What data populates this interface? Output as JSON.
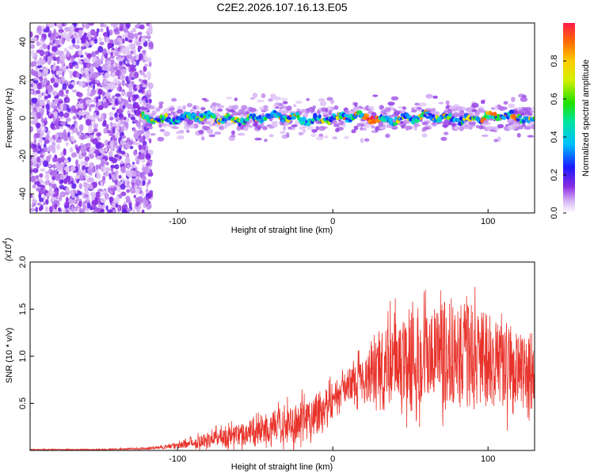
{
  "title": "C2E2.2026.107.16.13.E05",
  "chart_data": [
    {
      "type": "heatmap",
      "title": "C2E2.2026.107.16.13.E05",
      "xlabel": "Height of straight line (km)",
      "ylabel": "Frequency (Hz)",
      "xlim": [
        -195,
        130
      ],
      "ylim": [
        -50,
        50
      ],
      "x_ticks": [
        -100,
        0,
        100
      ],
      "y_ticks": [
        -40,
        -20,
        0,
        20,
        40
      ],
      "colorbar": {
        "label": "Normalized spectral amplitude",
        "range": [
          0.0,
          1.0
        ],
        "ticks": [
          0.0,
          0.2,
          0.4,
          0.6,
          0.8
        ]
      },
      "regions": [
        {
          "desc": "noise",
          "x_range": [
            -195,
            -123
          ],
          "freq_range": [
            -50,
            50
          ],
          "amplitude": 0.1
        },
        {
          "desc": "signal",
          "x_range": [
            -123,
            130
          ],
          "freq_center": 0,
          "freq_width": 6,
          "amplitude_peak": 1.0
        }
      ]
    },
    {
      "type": "line",
      "xlabel": "Height of straight line (km)",
      "ylabel": "SNR (10 * v/v)",
      "scale_note": "(x10",
      "scale_exp": "4",
      "xlim": [
        -195,
        130
      ],
      "ylim": [
        0,
        2.0
      ],
      "x_ticks": [
        -100,
        0,
        100
      ],
      "y_ticks": [
        0.5,
        1.0,
        1.5,
        2.0
      ],
      "color": "#e8332b",
      "envelope": {
        "x": [
          -195,
          -150,
          -120,
          -100,
          -80,
          -60,
          -40,
          -20,
          -10,
          0,
          10,
          20,
          30,
          40,
          60,
          80,
          90,
          100,
          110,
          120,
          130
        ],
        "mean": [
          0.01,
          0.01,
          0.02,
          0.05,
          0.12,
          0.17,
          0.24,
          0.3,
          0.4,
          0.55,
          0.7,
          0.78,
          0.85,
          0.95,
          1.0,
          1.05,
          1.0,
          0.95,
          0.9,
          0.85,
          0.8
        ],
        "amp": [
          0.005,
          0.005,
          0.01,
          0.03,
          0.08,
          0.12,
          0.16,
          0.22,
          0.25,
          0.18,
          0.15,
          0.25,
          0.35,
          0.45,
          0.5,
          0.55,
          0.55,
          0.5,
          0.45,
          0.4,
          0.35
        ]
      }
    }
  ]
}
